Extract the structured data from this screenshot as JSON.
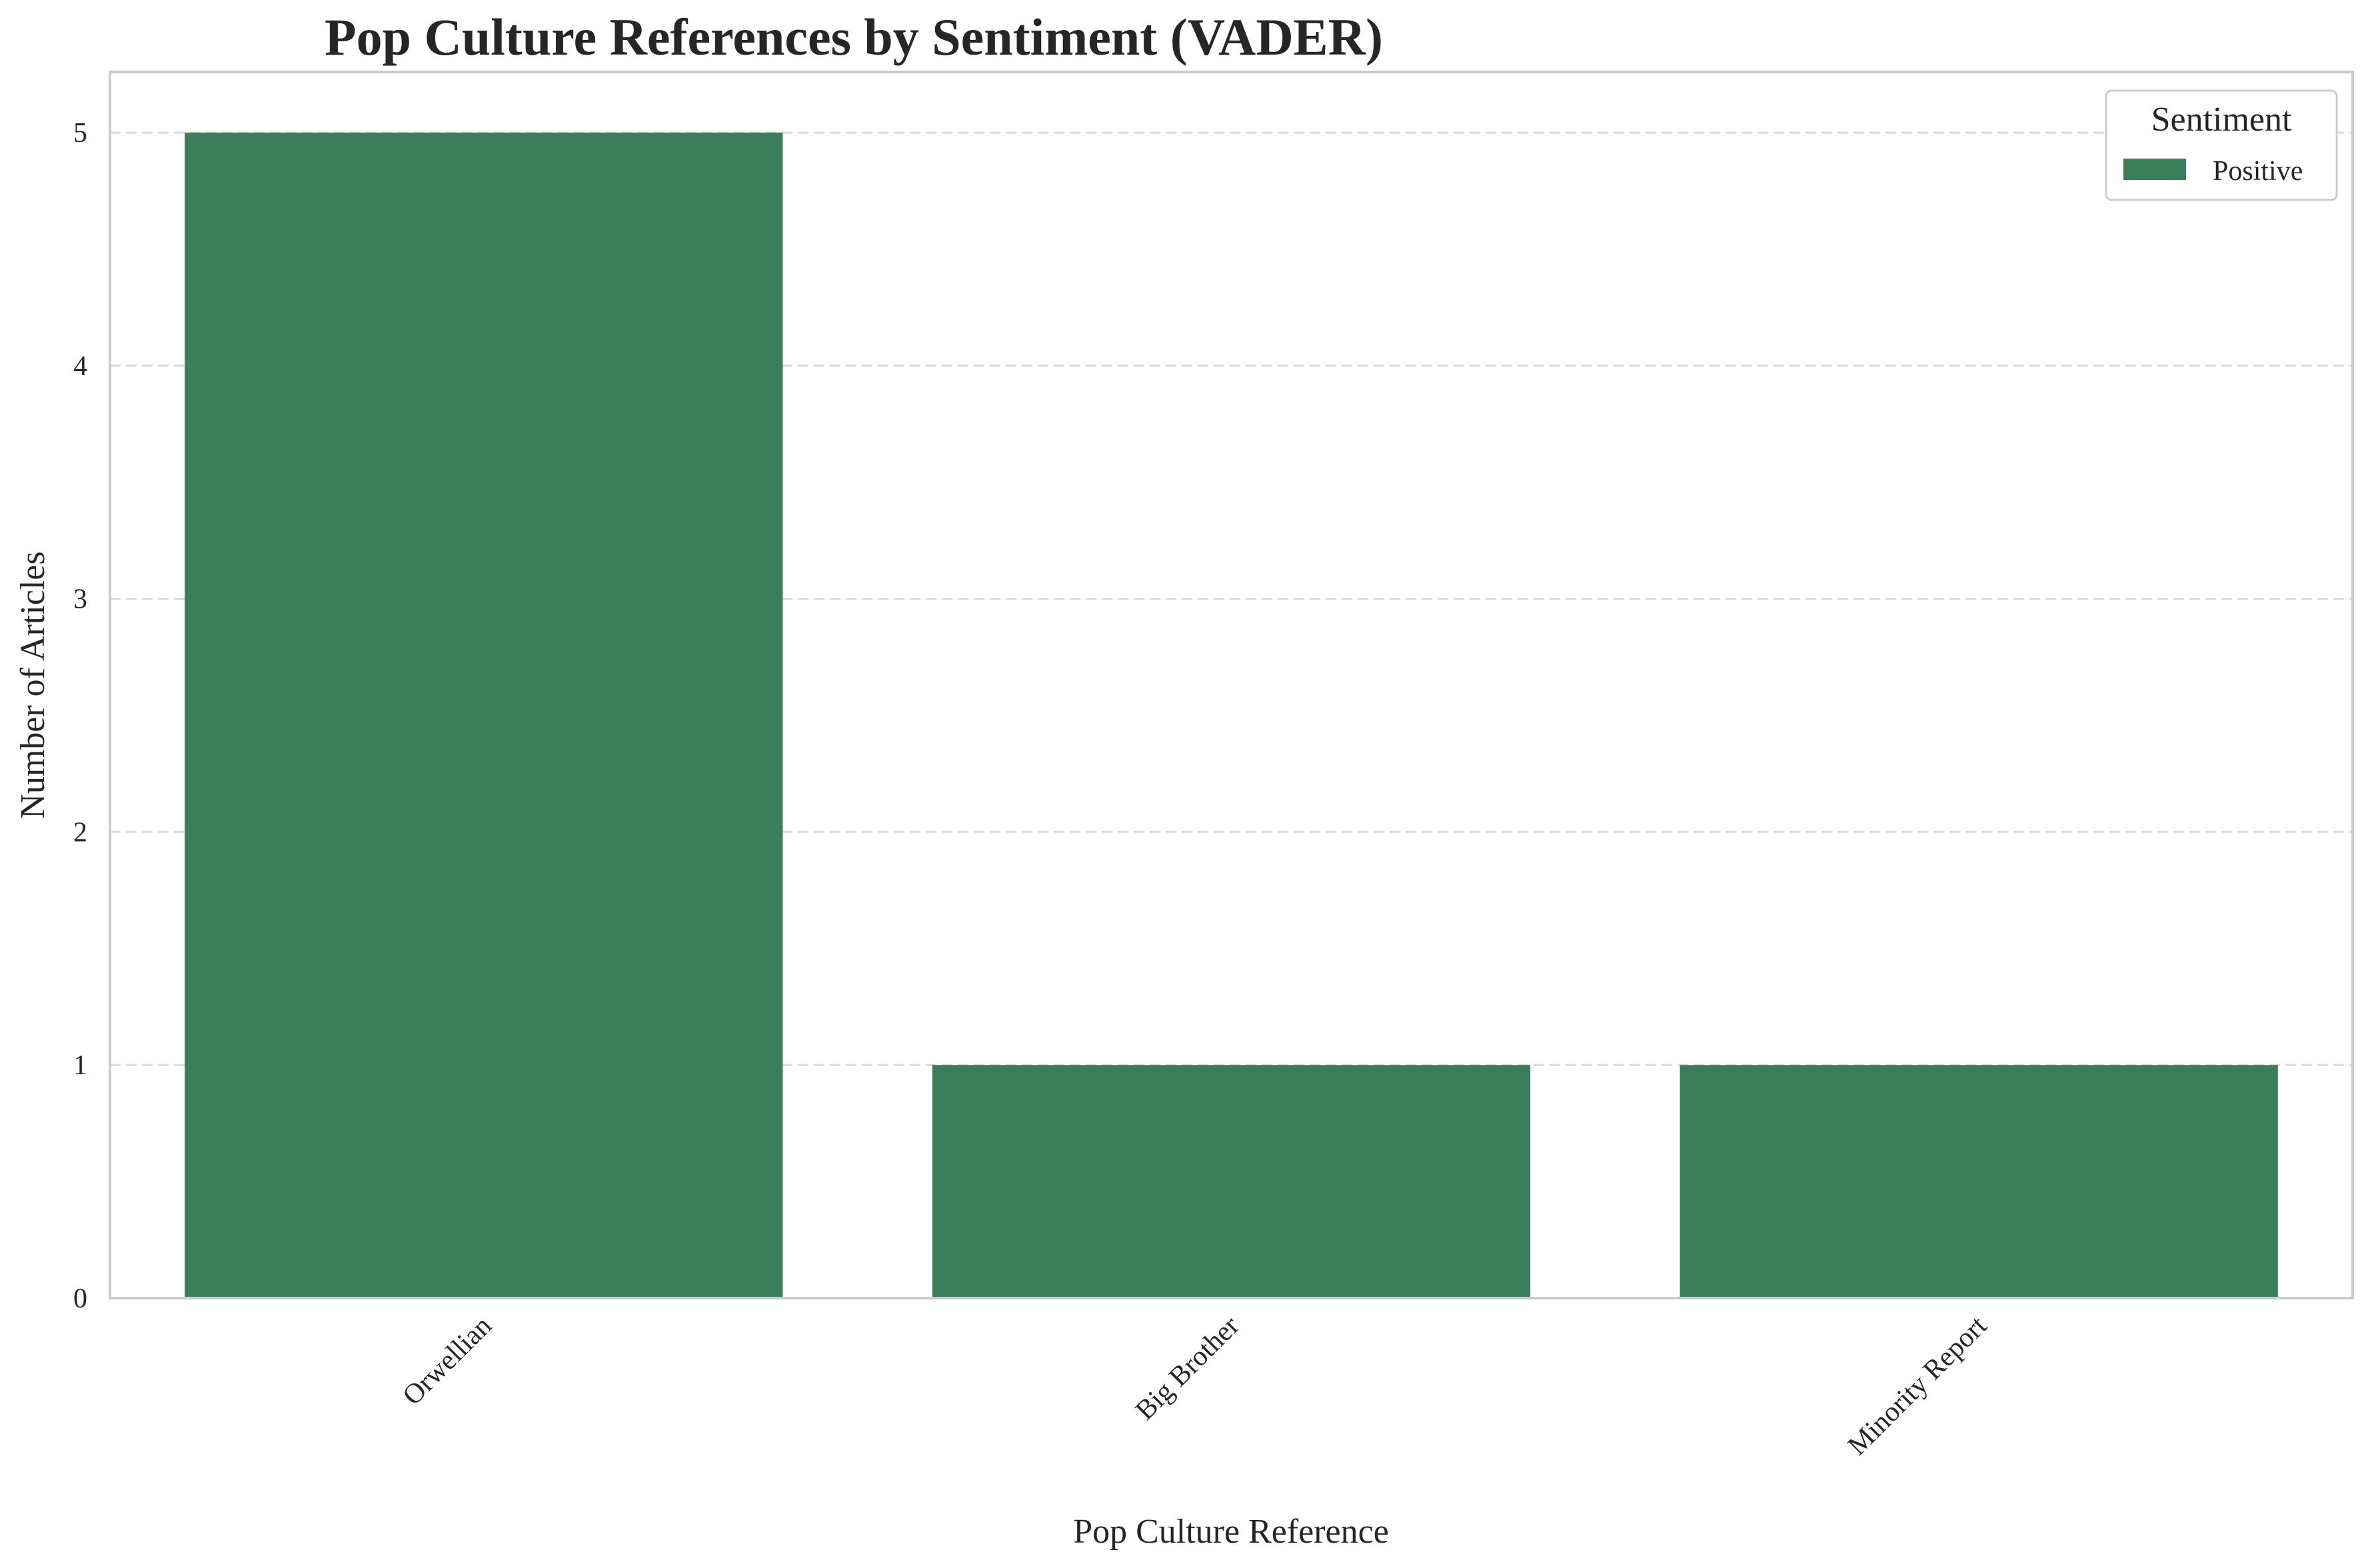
{
  "chart_data": {
    "type": "bar",
    "title": "Pop Culture References by Sentiment (VADER)",
    "xlabel": "Pop Culture Reference",
    "ylabel": "Number of Articles",
    "categories": [
      "Orwellian",
      "Big Brother",
      "Minority Report"
    ],
    "series": [
      {
        "name": "Positive",
        "values": [
          5,
          1,
          1
        ],
        "color": "#3b7f5a"
      }
    ],
    "ylim": [
      0,
      5.26
    ],
    "yticks": [
      0,
      1,
      2,
      3,
      4,
      5
    ],
    "grid": "y-dashed",
    "legend": {
      "title": "Sentiment",
      "placement": "top-right"
    }
  }
}
